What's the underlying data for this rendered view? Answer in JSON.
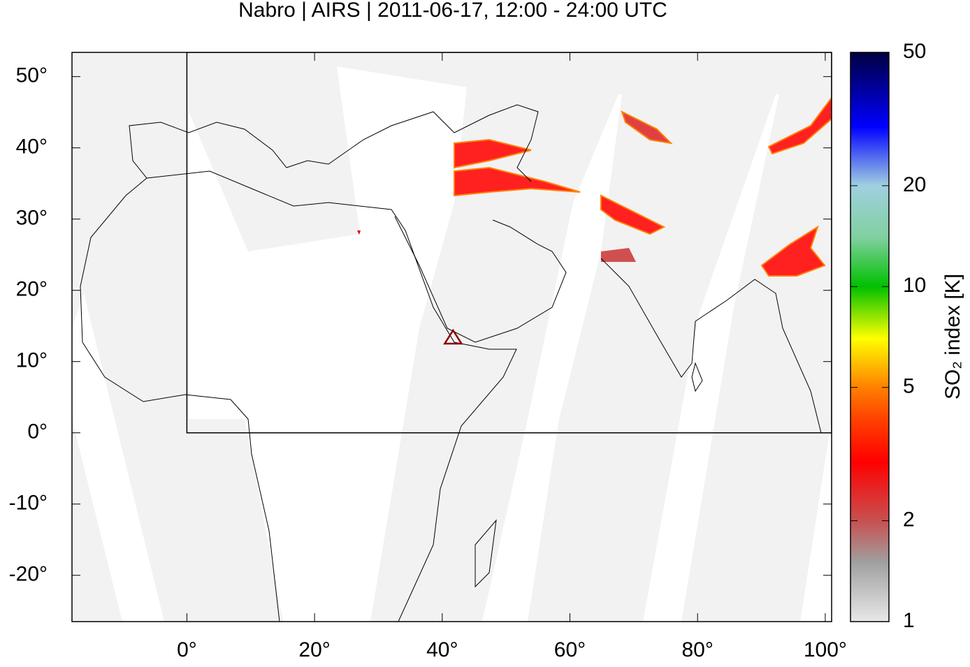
{
  "title": "Nabro | AIRS | 2011-06-17, 12:00 - 24:00 UTC",
  "map": {
    "xlim": [
      -18,
      101
    ],
    "ylim": [
      -26.5,
      53.4
    ],
    "xticks": [
      {
        "value": 0,
        "label": "0°"
      },
      {
        "value": 20,
        "label": "20°"
      },
      {
        "value": 40,
        "label": "40°"
      },
      {
        "value": 60,
        "label": "60°"
      },
      {
        "value": 80,
        "label": "80°"
      },
      {
        "value": 100,
        "label": "100°"
      }
    ],
    "yticks": [
      {
        "value": -20,
        "label": "-20°"
      },
      {
        "value": -10,
        "label": "-10°"
      },
      {
        "value": 0,
        "label": "0°"
      },
      {
        "value": 10,
        "label": "10°"
      },
      {
        "value": 20,
        "label": "20°"
      },
      {
        "value": 30,
        "label": "30°"
      },
      {
        "value": 40,
        "label": "40°"
      },
      {
        "value": 50,
        "label": "50°"
      }
    ],
    "box": {
      "lon": [
        0,
        101
      ],
      "lat": [
        0,
        53.4
      ]
    },
    "volcano": {
      "lon": 41.7,
      "lat": 13.4,
      "color": "#8b0000"
    }
  },
  "colorbar": {
    "label": "SO₂ index [K]",
    "log": true,
    "lim": [
      1,
      50
    ],
    "ticks": [
      1,
      2,
      5,
      10,
      20,
      50
    ],
    "colors": [
      {
        "value": 1,
        "color": "#e8e8e8"
      },
      {
        "value": 1.5,
        "color": "#a0a0a0"
      },
      {
        "value": 2,
        "color": "#c85050"
      },
      {
        "value": 3,
        "color": "#ff0000"
      },
      {
        "value": 4,
        "color": "#ff4000"
      },
      {
        "value": 5,
        "color": "#ff8000"
      },
      {
        "value": 7,
        "color": "#ffff00"
      },
      {
        "value": 10,
        "color": "#00c000"
      },
      {
        "value": 14,
        "color": "#80d0a0"
      },
      {
        "value": 20,
        "color": "#a0d0e0"
      },
      {
        "value": 30,
        "color": "#0000ff"
      },
      {
        "value": 50,
        "color": "#000040"
      }
    ]
  }
}
